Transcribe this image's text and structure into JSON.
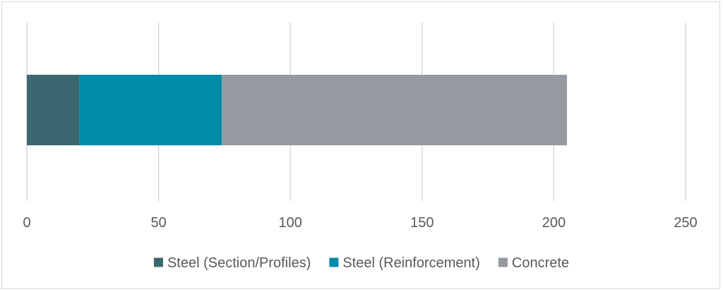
{
  "chart_data": {
    "type": "bar",
    "orientation": "horizontal",
    "stacked": true,
    "categories": [
      ""
    ],
    "series": [
      {
        "name": "Steel (Section/Profiles)",
        "values": [
          20
        ],
        "color": "#3b6870"
      },
      {
        "name": "Steel (Reinforcement)",
        "values": [
          54
        ],
        "color": "#008ba6"
      },
      {
        "name": "Concrete",
        "values": [
          131
        ],
        "color": "#949a9f"
      }
    ],
    "xlim": [
      0,
      250
    ],
    "xticks": [
      0,
      50,
      100,
      150,
      200,
      250
    ],
    "tick_labels": [
      "0",
      "50",
      "100",
      "150",
      "200",
      "250"
    ],
    "grid": "vertical",
    "legend": "bottom"
  }
}
